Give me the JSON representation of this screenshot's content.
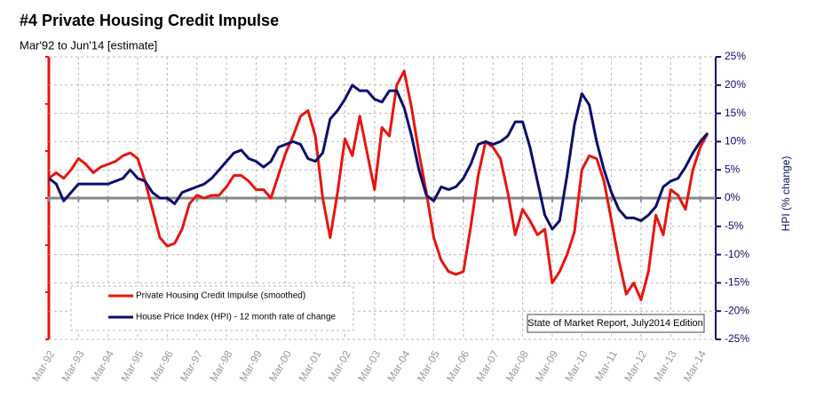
{
  "chart_data": {
    "type": "line",
    "title": "#4 Private Housing Credit Impulse",
    "subtitle": "Mar'92 to Jun'14 [estimate]",
    "y2label": "HPI (% change)",
    "annotation": "State of Market Report, July2014 Edition",
    "categories": [
      "Mar-92",
      null,
      null,
      null,
      "Mar-93",
      null,
      null,
      null,
      "Mar-94",
      null,
      null,
      null,
      "Mar-95",
      null,
      null,
      null,
      "Mar-96",
      null,
      null,
      null,
      "Mar-97",
      null,
      null,
      null,
      "Mar-98",
      null,
      null,
      null,
      "Mar-99",
      null,
      null,
      null,
      "Mar-00",
      null,
      null,
      null,
      "Mar-01",
      null,
      null,
      null,
      "Mar-02",
      null,
      null,
      null,
      "Mar-03",
      null,
      null,
      null,
      "Mar-04",
      null,
      null,
      null,
      "Mar-05",
      null,
      null,
      null,
      "Mar-06",
      null,
      null,
      null,
      "Mar-07",
      null,
      null,
      null,
      "Mar-08",
      null,
      null,
      null,
      "Mar-09",
      null,
      null,
      null,
      "Mar-10",
      null,
      null,
      null,
      "Mar-11",
      null,
      null,
      null,
      "Mar-12",
      null,
      null,
      null,
      "Mar-13",
      null,
      null,
      null,
      "Mar-14",
      null
    ],
    "series": [
      {
        "name": "Private Housing Credit Impulse (smoothed)",
        "color": "#e8140f",
        "axis": "y2",
        "values": [
          3.5,
          4.5,
          3.5,
          5,
          7,
          6,
          4.5,
          5.5,
          6,
          6.5,
          7.5,
          8,
          7,
          3,
          -2,
          -7,
          -8.5,
          -8,
          -5.5,
          -1,
          0.5,
          0,
          0.5,
          0.5,
          2,
          4,
          4,
          3,
          1.5,
          1.5,
          0,
          4,
          8,
          11,
          14.5,
          15.5,
          11,
          0,
          -7,
          1,
          10.5,
          7.5,
          14.5,
          8,
          1.5,
          12.5,
          11,
          20,
          22.5,
          16,
          8,
          1,
          -7,
          -11,
          -13,
          -13.5,
          -13,
          -5,
          4,
          10,
          9,
          7,
          1,
          -6.5,
          -2,
          -4,
          -6.5,
          -5.5,
          -15,
          -13,
          -10,
          -6,
          5,
          7.5,
          7,
          3,
          -4,
          -11,
          -17,
          -15,
          -18,
          -13,
          -3,
          -6.5,
          1.5,
          0.5,
          -2,
          5,
          9,
          11.5
        ]
      },
      {
        "name": "House Price Index (HPI) - 12 month rate of change",
        "color": "#0c0c6e",
        "axis": "y2",
        "values": [
          3.5,
          2.5,
          -0.5,
          1,
          2.5,
          2.5,
          2.5,
          2.5,
          2.5,
          3,
          3.5,
          5,
          3.5,
          3,
          1,
          0,
          0,
          -1,
          1,
          1.5,
          2,
          2.5,
          3.5,
          5,
          6.5,
          8,
          8.5,
          7,
          6.5,
          5.5,
          6.5,
          9,
          9.5,
          10,
          9.5,
          7,
          6.5,
          8,
          14,
          15.5,
          17.5,
          20,
          19,
          19,
          17.5,
          17,
          19,
          19,
          16,
          11,
          5,
          0.5,
          -0.5,
          2,
          1.5,
          2,
          3.5,
          6,
          9.5,
          10,
          9.5,
          10,
          11,
          13.5,
          13.5,
          9,
          3,
          -3,
          -5.5,
          -4,
          4,
          13,
          18.5,
          16.5,
          10,
          5,
          1,
          -2,
          -3.5,
          -3.5,
          -4,
          -3,
          -1.5,
          2,
          3,
          3.5,
          5.5,
          8,
          10,
          11.5
        ]
      }
    ],
    "y2lim": [
      -25,
      25
    ],
    "y2ticks": [
      {
        "value": 25,
        "label": "25%"
      },
      {
        "value": 20,
        "label": "20%"
      },
      {
        "value": 15,
        "label": "15%"
      },
      {
        "value": 10,
        "label": "10%"
      },
      {
        "value": 5,
        "label": "5%"
      },
      {
        "value": 0,
        "label": "0%"
      },
      {
        "value": -5,
        "label": "-5%"
      },
      {
        "value": -10,
        "label": "-10%"
      },
      {
        "value": -15,
        "label": "-15%"
      },
      {
        "value": -20,
        "label": "-20%"
      },
      {
        "value": -25,
        "label": "-25%"
      }
    ],
    "grid": true
  }
}
